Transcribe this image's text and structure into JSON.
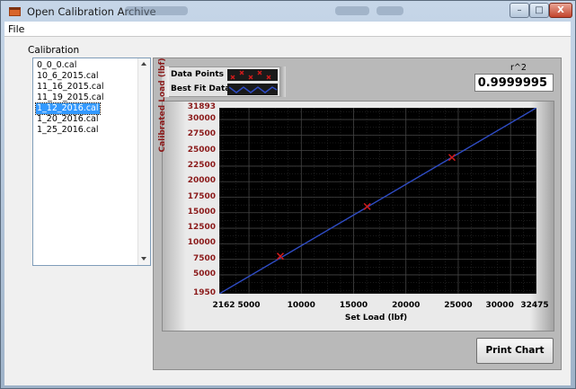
{
  "window": {
    "title": "Open Calibration Archive",
    "buttons": {
      "minimize": "–",
      "maximize": "□",
      "close": "X"
    }
  },
  "menu": {
    "file": "File"
  },
  "calibration": {
    "label": "Calibration",
    "files": [
      "0_0_0.cal",
      "10_6_2015.cal",
      "11_16_2015.cal",
      "11_19_2015.cal",
      "1_12_2016.cal",
      "1_20_2016.cal",
      "1_25_2016.cal"
    ],
    "selected_index": 4
  },
  "legend": {
    "data_points": "Data Points",
    "best_fit": "Best Fit Data"
  },
  "r2": {
    "label": "r^2",
    "value": "0.9999995"
  },
  "print_button": "Print Chart",
  "colors": {
    "plot_bg": "#000000",
    "fit_line": "#2f4cc4",
    "marker": "#d21a1a",
    "grid": "#2e2e2e",
    "ytick": "#8b1a1a"
  },
  "chart_data": {
    "type": "scatter",
    "xlabel": "Set Load (lbf)",
    "ylabel": "Calibrated Load (lbf)",
    "xlim": [
      2162,
      32475
    ],
    "ylim": [
      1950,
      31893
    ],
    "xticks": [
      "2162",
      "5000",
      "10000",
      "15000",
      "20000",
      "25000",
      "30000",
      "32475"
    ],
    "xtick_values": [
      2162,
      5000,
      10000,
      15000,
      20000,
      25000,
      30000,
      32475
    ],
    "yticks": [
      "31893",
      "30000",
      "27500",
      "25000",
      "22500",
      "20000",
      "17500",
      "15000",
      "12500",
      "10000",
      "7500",
      "5000",
      "1950"
    ],
    "ytick_values": [
      31893,
      30000,
      27500,
      25000,
      22500,
      20000,
      17500,
      15000,
      12500,
      10000,
      7500,
      5000,
      1950
    ],
    "grid": true,
    "series": [
      {
        "name": "Data Points",
        "type": "scatter",
        "x": [
          8000,
          16300,
          24400
        ],
        "y": [
          8000,
          16000,
          23900
        ]
      },
      {
        "name": "Best Fit Data",
        "type": "line",
        "x": [
          2162,
          32475
        ],
        "y": [
          1950,
          31893
        ]
      }
    ]
  }
}
